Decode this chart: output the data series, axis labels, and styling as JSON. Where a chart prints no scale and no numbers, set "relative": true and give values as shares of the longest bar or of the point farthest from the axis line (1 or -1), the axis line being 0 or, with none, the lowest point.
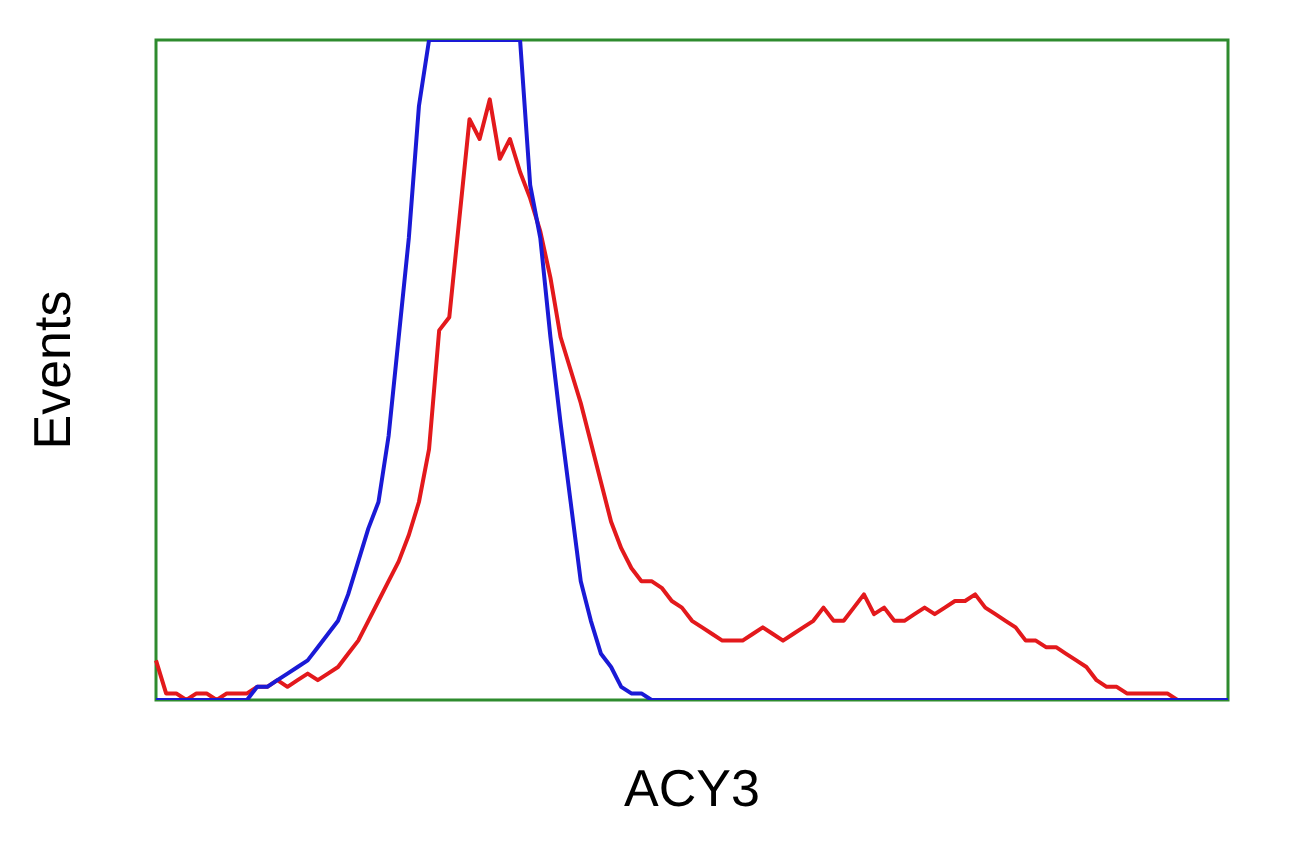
{
  "chart_data": {
    "type": "line",
    "xlabel": "ACY3",
    "ylabel": "Events",
    "relative": true,
    "grid": false,
    "legend": false,
    "marker": "none",
    "categories": [
      null,
      null,
      null,
      null,
      null,
      null,
      null,
      null,
      null,
      null,
      null,
      null,
      null,
      null,
      null,
      null,
      null,
      null,
      null,
      null,
      null,
      null,
      null,
      null,
      null,
      null,
      null,
      null,
      null,
      null,
      null,
      null,
      null,
      null,
      null,
      null,
      null,
      null,
      null,
      null,
      null,
      null,
      null,
      null,
      null,
      null,
      null,
      null,
      null,
      null,
      null,
      null,
      null,
      null,
      null,
      null,
      null,
      null,
      null,
      null,
      null,
      null,
      null,
      null,
      null,
      null,
      null,
      null,
      null,
      null,
      null,
      null,
      null,
      null,
      null,
      null,
      null,
      null,
      null,
      null,
      null,
      null,
      null,
      null,
      null,
      null,
      null,
      null,
      null,
      null,
      null,
      null,
      null,
      null,
      null,
      null,
      null,
      null,
      null,
      null,
      null,
      null,
      null,
      null,
      null,
      null,
      null
    ],
    "series": [
      {
        "color": "#1a1ad6",
        "values": [
          0,
          0,
          0,
          0,
          0,
          0,
          0,
          0,
          0,
          0,
          0.02,
          0.02,
          0.03,
          0.04,
          0.05,
          0.06,
          0.08,
          0.1,
          0.12,
          0.16,
          0.21,
          0.26,
          0.3,
          0.4,
          0.55,
          0.7,
          0.9,
          1,
          1,
          1,
          1,
          1,
          1,
          1,
          1,
          1,
          1,
          0.78,
          0.7,
          0.55,
          0.42,
          0.3,
          0.18,
          0.12,
          0.07,
          0.05,
          0.02,
          0.01,
          0.01,
          0,
          0,
          0,
          0,
          0,
          0,
          0,
          0,
          0,
          0,
          0,
          0,
          0,
          0,
          0,
          0,
          0,
          0,
          0,
          0,
          0,
          0,
          0,
          0,
          0,
          0,
          0,
          0,
          0,
          0,
          0,
          0,
          0,
          0,
          0,
          0,
          0,
          0,
          0,
          0,
          0,
          0,
          0,
          0,
          0,
          0,
          0,
          0,
          0,
          0,
          0,
          0,
          0,
          0,
          0,
          0,
          0,
          0
        ]
      },
      {
        "color": "#e3191c",
        "values": [
          0.06,
          0.01,
          0.01,
          0,
          0.01,
          0.01,
          0,
          0.01,
          0.01,
          0.01,
          0.02,
          0.02,
          0.03,
          0.02,
          0.03,
          0.04,
          0.03,
          0.04,
          0.05,
          0.07,
          0.09,
          0.12,
          0.15,
          0.18,
          0.21,
          0.25,
          0.3,
          0.38,
          0.56,
          0.58,
          0.73,
          0.88,
          0.85,
          0.91,
          0.82,
          0.85,
          0.8,
          0.76,
          0.71,
          0.64,
          0.55,
          0.5,
          0.45,
          0.39,
          0.33,
          0.27,
          0.23,
          0.2,
          0.18,
          0.18,
          0.17,
          0.15,
          0.14,
          0.12,
          0.11,
          0.1,
          0.09,
          0.09,
          0.09,
          0.1,
          0.11,
          0.1,
          0.09,
          0.1,
          0.11,
          0.12,
          0.14,
          0.12,
          0.12,
          0.14,
          0.16,
          0.13,
          0.14,
          0.12,
          0.12,
          0.13,
          0.14,
          0.13,
          0.14,
          0.15,
          0.15,
          0.16,
          0.14,
          0.13,
          0.12,
          0.11,
          0.09,
          0.09,
          0.08,
          0.08,
          0.07,
          0.06,
          0.05,
          0.03,
          0.02,
          0.02,
          0.01,
          0.01,
          0.01,
          0.01,
          0.01,
          0,
          0,
          0,
          null,
          null,
          null
        ]
      }
    ]
  }
}
